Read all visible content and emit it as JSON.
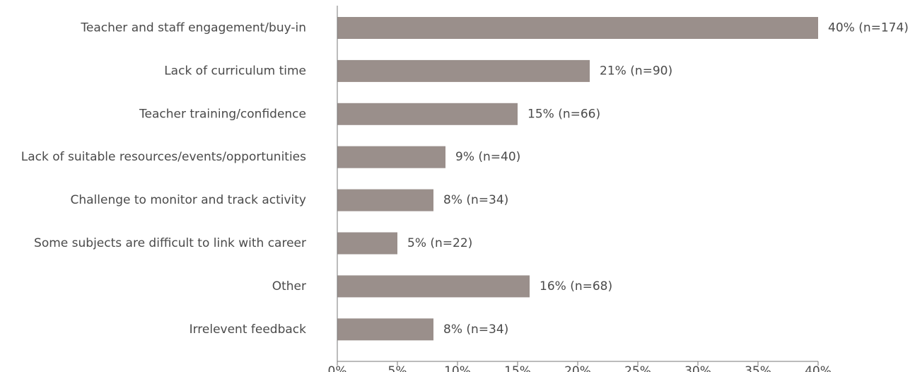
{
  "chart_data": {
    "type": "bar",
    "orientation": "horizontal",
    "categories": [
      "Teacher and staff engagement/buy-in",
      "Lack of curriculum time",
      "Teacher training/confidence",
      "Lack of suitable resources/events/opportunities",
      "Challenge to monitor and track activity",
      "Some subjects are difficult to link with career",
      "Other",
      "Irrelevent feedback"
    ],
    "values": [
      40,
      21,
      15,
      9,
      8,
      5,
      16,
      8
    ],
    "data_labels": [
      "40% (n=174)",
      "21% (n=90)",
      "15% (n=66)",
      "9% (n=40)",
      "8% (n=34)",
      "5% (n=22)",
      "16% (n=68)",
      "8% (n=34)"
    ],
    "xticks": [
      "0%",
      "5%",
      "10%",
      "15%",
      "20%",
      "25%",
      "30%",
      "35%",
      "40%"
    ],
    "xlim": [
      0,
      40
    ],
    "title": "",
    "xlabel": "",
    "ylabel": "",
    "grid": false,
    "legend": "none",
    "bar_color": "#9a8f8b",
    "axis_color": "#7a7a7a",
    "text_color": "#4a4a4a"
  }
}
